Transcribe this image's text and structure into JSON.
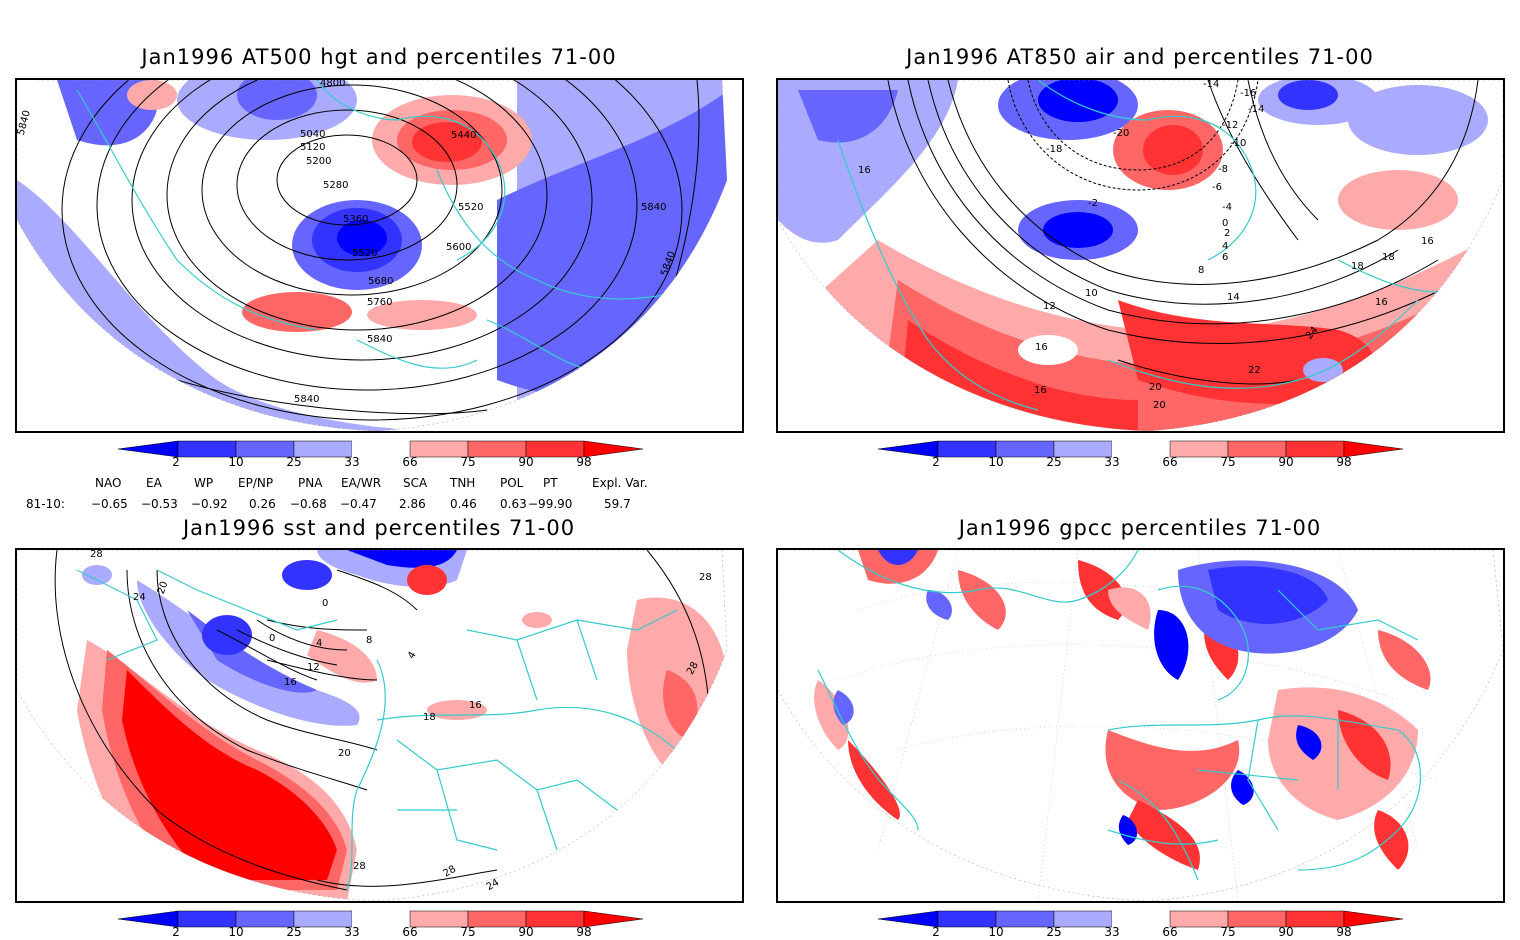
{
  "panels": [
    {
      "id": "tl",
      "title": "Jan1996 AT500 hgt and percentiles 71-00",
      "contour_labels": [
        "4800",
        "5040",
        "5120",
        "5200",
        "5280",
        "5360",
        "5440",
        "5520",
        "5600",
        "5680",
        "5760",
        "5840",
        "5840",
        "5840",
        "5840",
        "5520",
        "5840"
      ]
    },
    {
      "id": "tr",
      "title": "Jan1996 AT850 air and percentiles 71-00",
      "contour_labels": [
        "-14",
        "-16",
        "-14",
        "-12",
        "-10",
        "-8",
        "-6",
        "-4",
        "-2",
        "0",
        "2",
        "4",
        "6",
        "8",
        "10",
        "12",
        "14",
        "16",
        "18",
        "20",
        "22",
        "24",
        "16",
        "-18",
        "-20",
        "16",
        "16",
        "16",
        "18",
        "20"
      ]
    },
    {
      "id": "bl",
      "title": "Jan1996 sst and percentiles 71-00",
      "contour_labels": [
        "28",
        "24",
        "20",
        "0",
        "0",
        "4",
        "8",
        "12",
        "16",
        "20",
        "16",
        "18",
        "28",
        "28",
        "28",
        "28",
        "4",
        "24"
      ]
    },
    {
      "id": "br",
      "title": "Jan1996 gpcc percentiles 71-00",
      "contour_labels": []
    }
  ],
  "colorbar": {
    "labels": [
      "2",
      "10",
      "25",
      "33",
      "66",
      "75",
      "90",
      "98"
    ],
    "colors": {
      "blue_extreme": "#0000ff",
      "blue2": "#3333ff",
      "blue10": "#6666ff",
      "blue25": "#aaaaff",
      "white": "#ffffff",
      "red66": "#ffaaaa",
      "red75": "#ff6666",
      "red90": "#ff3333",
      "red_extreme": "#ff0000"
    }
  },
  "indices": {
    "headers": [
      "NAO",
      "EA",
      "WP",
      "EP/NP",
      "PNA",
      "EA/WR",
      "SCA",
      "TNH",
      "POL",
      "PT",
      "Expl. Var."
    ],
    "row_label": "81-10:",
    "values": [
      "−0.65",
      "−0.53",
      "−0.92",
      "0.26",
      "−0.68",
      "−0.47",
      "2.86",
      "0.46",
      "0.63",
      "−99.90",
      "59.7"
    ]
  },
  "colors": {
    "coast": "#33cccc",
    "contour": "#000000"
  }
}
